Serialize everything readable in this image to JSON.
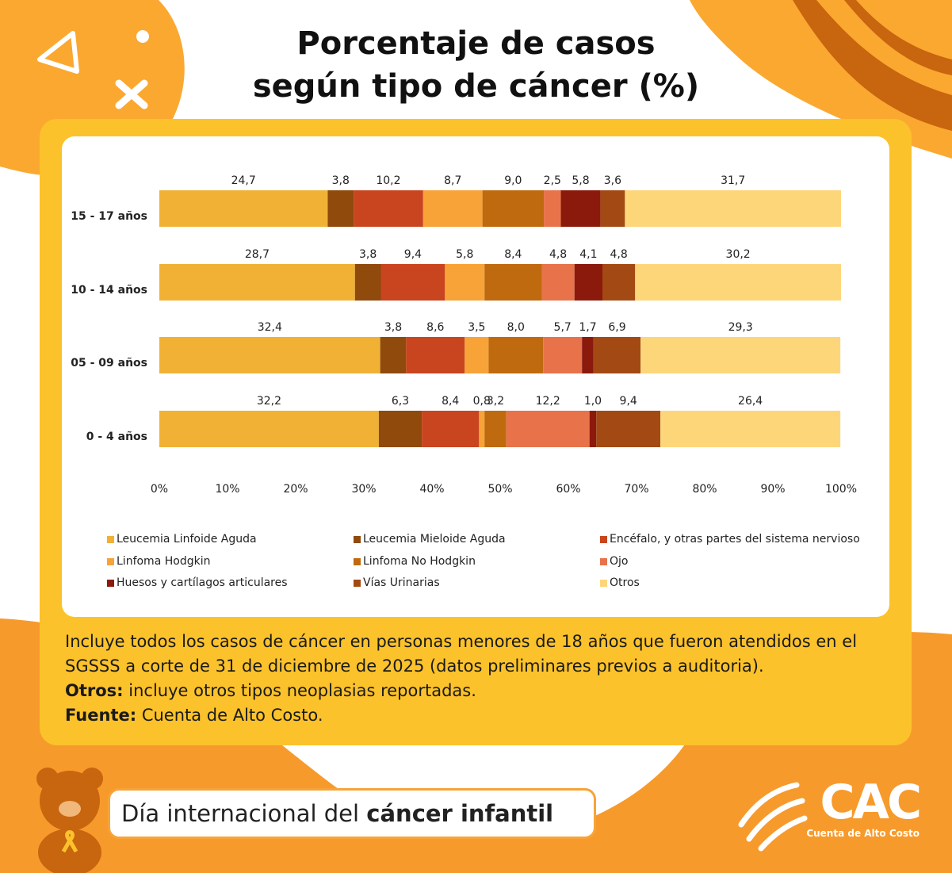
{
  "chart_data": {
    "type": "stacked-bar-horizontal",
    "title": [
      "Porcentaje de casos",
      "según tipo de cáncer (%)"
    ],
    "categories": [
      "15 - 17 años",
      "10 - 14 años",
      "05 - 09 años",
      "0 - 4 años"
    ],
    "series": [
      {
        "name": "Leucemia Linfoide Aguda",
        "color": "#f0b135",
        "values": [
          24.7,
          28.7,
          32.4,
          32.2
        ],
        "value_labels": [
          "24,7",
          "28,7",
          "32,4",
          "32,2"
        ]
      },
      {
        "name": "Leucemia Mieloide Aguda",
        "color": "#8f4a0c",
        "values": [
          3.8,
          3.8,
          3.8,
          6.3
        ],
        "value_labels": [
          "3,8",
          "3,8",
          "3,8",
          "6,3"
        ]
      },
      {
        "name": "Encéfalo, y otras partes del sistema nervioso",
        "color": "#c9451f",
        "values": [
          10.2,
          9.4,
          8.6,
          8.4
        ],
        "value_labels": [
          "10,2",
          "9,4",
          "8,6",
          "8,4"
        ]
      },
      {
        "name": "Linfoma Hodgkin",
        "color": "#f7a338",
        "values": [
          8.7,
          5.8,
          3.5,
          0.8
        ],
        "value_labels": [
          "8,7",
          "5,8",
          "3,5",
          "0,8"
        ]
      },
      {
        "name": "Linfoma No Hodgkin",
        "color": "#bf6a0e",
        "values": [
          9.0,
          8.4,
          8.0,
          3.2
        ],
        "value_labels": [
          "9,0",
          "8,4",
          "8,0",
          "3,2"
        ]
      },
      {
        "name": "Ojo",
        "color": "#e8734a",
        "values": [
          2.5,
          4.8,
          5.7,
          12.2
        ],
        "value_labels": [
          "2,5",
          "4,8",
          "5,7",
          "12,2"
        ]
      },
      {
        "name": "Huesos y cartílagos articulares",
        "color": "#8b1a0c",
        "values": [
          5.8,
          4.1,
          1.7,
          1.0
        ],
        "value_labels": [
          "5,8",
          "4,1",
          "1,7",
          "1,0"
        ]
      },
      {
        "name": "Vías Urinarias",
        "color": "#a34a14",
        "values": [
          3.6,
          4.8,
          6.9,
          9.4
        ],
        "value_labels": [
          "3,6",
          "4,8",
          "6,9",
          "9,4"
        ]
      },
      {
        "name": "Otros",
        "color": "#fed67a",
        "values": [
          31.7,
          30.2,
          29.3,
          26.4
        ],
        "value_labels": [
          "31,7",
          "30,2",
          "29,3",
          "26,4"
        ]
      }
    ],
    "xlim": [
      0,
      100
    ],
    "xticks": [
      {
        "value": 0,
        "label": "0%"
      },
      {
        "value": 10,
        "label": "10%"
      },
      {
        "value": 20,
        "label": "20%"
      },
      {
        "value": 30,
        "label": "30%"
      },
      {
        "value": 40,
        "label": "40%"
      },
      {
        "value": 50,
        "label": "50%"
      },
      {
        "value": 60,
        "label": "60%"
      },
      {
        "value": 70,
        "label": "70%"
      },
      {
        "value": 80,
        "label": "80%"
      },
      {
        "value": 90,
        "label": "90%"
      },
      {
        "value": 100,
        "label": "100%"
      }
    ],
    "grid": false,
    "legend": "bottom"
  },
  "notes": {
    "description": "Incluye todos los casos de cáncer en personas menores de 18 años que fueron atendidos en el SGSSS a corte de 31 de diciembre de 2025 (datos preliminares previos a auditoria).",
    "others_label": "Otros:",
    "others_text": "incluye otros tipos neoplasias reportadas.",
    "source_label": "Fuente:",
    "source_text": "Cuenta de Alto Costo."
  },
  "banner": {
    "text": "Día internacional del",
    "bold": "cáncer infantil"
  },
  "logo": {
    "name": "CAC",
    "subtitle": "Cuenta de Alto Costo"
  }
}
